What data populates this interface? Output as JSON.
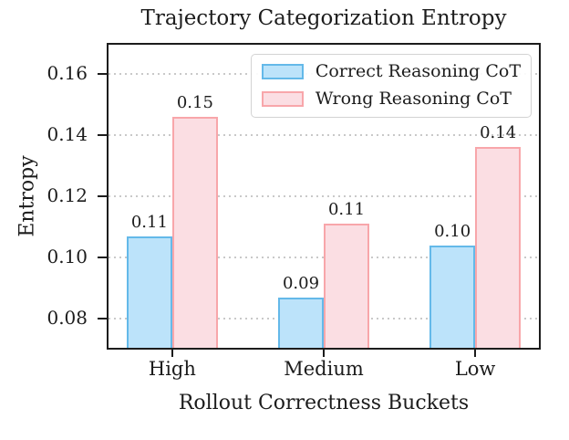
{
  "chart_data": {
    "type": "bar",
    "title": "Trajectory Categorization Entropy",
    "xlabel": "Rollout Correctness Buckets",
    "ylabel": "Entropy",
    "categories": [
      "High",
      "Medium",
      "Low"
    ],
    "series": [
      {
        "name": "Correct Reasoning CoT",
        "values": [
          0.107,
          0.087,
          0.104
        ],
        "bar_labels": [
          "0.11",
          "0.09",
          "0.10"
        ],
        "fill": "#BCE3FA",
        "edge": "#64B9E9"
      },
      {
        "name": "Wrong Reasoning CoT",
        "values": [
          0.146,
          0.111,
          0.136
        ],
        "bar_labels": [
          "0.15",
          "0.11",
          "0.14"
        ],
        "fill": "#FBDEE3",
        "edge": "#F8A6AA"
      }
    ],
    "ylim": [
      0.07,
      0.17
    ],
    "yticks": [
      "0.16",
      "0.14",
      "0.12",
      "0.10",
      "0.08"
    ],
    "ytick_values": [
      0.16,
      0.14,
      0.12,
      0.1,
      0.08
    ],
    "grid": {
      "axis": "y",
      "style": "dotted",
      "color": "#c9c9c9"
    },
    "legend_position": "upper right",
    "colors": {
      "spine": "#1c1c1c",
      "text": "#1c1c1c",
      "background": "#ffffff"
    }
  }
}
